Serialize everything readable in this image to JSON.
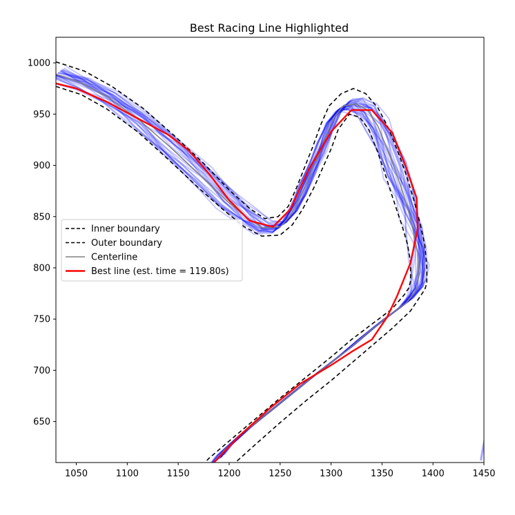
{
  "chart_data": {
    "type": "line",
    "title": "Best Racing Line Highlighted",
    "xlabel": "",
    "ylabel": "",
    "xlim": [
      1030,
      1450
    ],
    "ylim": [
      610,
      1025
    ],
    "xticks": [
      1050,
      1100,
      1150,
      1200,
      1250,
      1300,
      1350,
      1400,
      1450
    ],
    "yticks": [
      650,
      700,
      750,
      800,
      850,
      900,
      950,
      1000
    ],
    "grid": false,
    "legend_position": "center-left",
    "colors": {
      "boundary": "#000000",
      "centerline": "#808080",
      "candidate": "#0000ff",
      "best": "#ff0000"
    },
    "legend": [
      {
        "label": "Inner boundary",
        "style": "dashed",
        "color": "#000000"
      },
      {
        "label": "Outer boundary",
        "style": "dashed",
        "color": "#000000"
      },
      {
        "label": "Centerline",
        "style": "solid",
        "color": "#808080"
      },
      {
        "label": "Best line (est. time = 119.80s)",
        "style": "solid",
        "color": "#ff0000"
      }
    ],
    "series": [
      {
        "name": "Inner boundary",
        "x": [
          1030,
          1055,
          1080,
          1110,
          1140,
          1170,
          1195,
          1215,
          1232,
          1250,
          1262,
          1272,
          1283,
          1292,
          1300,
          1307,
          1318,
          1328,
          1337,
          1345,
          1352,
          1358,
          1364,
          1370,
          1375,
          1378,
          1378,
          1376,
          1372,
          1360,
          1340,
          1320,
          1300,
          1275,
          1250,
          1225,
          1200,
          1180,
          1170
        ],
        "y": [
          977,
          969,
          955,
          933,
          906,
          878,
          856,
          840,
          831,
          832,
          842,
          857,
          878,
          898,
          916,
          935,
          950,
          947,
          935,
          915,
          895,
          876,
          858,
          840,
          823,
          805,
          787,
          780,
          774,
          760,
          745,
          730,
          713,
          693,
          673,
          652,
          631,
          614,
          603
        ]
      },
      {
        "name": "Outer boundary",
        "x": [
          1030,
          1058,
          1085,
          1115,
          1145,
          1175,
          1200,
          1220,
          1235,
          1248,
          1258,
          1266,
          1274,
          1282,
          1290,
          1298,
          1310,
          1322,
          1334,
          1346,
          1357,
          1366,
          1374,
          1381,
          1387,
          1392,
          1394,
          1394,
          1392,
          1388,
          1378,
          1360,
          1340,
          1320,
          1300,
          1275,
          1250,
          1225,
          1205,
          1195
        ],
        "y": [
          1001,
          992,
          977,
          956,
          930,
          902,
          876,
          858,
          848,
          850,
          860,
          878,
          898,
          918,
          940,
          958,
          970,
          975,
          970,
          956,
          935,
          912,
          890,
          867,
          845,
          822,
          800,
          785,
          779,
          773,
          758,
          741,
          724,
          707,
          690,
          670,
          649,
          627,
          609,
          600
        ]
      },
      {
        "name": "Centerline",
        "x": [
          1030,
          1056,
          1082,
          1112,
          1142,
          1172,
          1197,
          1217,
          1233,
          1250,
          1260,
          1269,
          1278,
          1287,
          1295,
          1302,
          1312,
          1324,
          1336,
          1346,
          1355,
          1363,
          1370,
          1376,
          1381,
          1385,
          1386,
          1385,
          1382,
          1374,
          1355,
          1335,
          1315,
          1290,
          1265,
          1240,
          1215,
          1195,
          1185
        ],
        "y": [
          989,
          980,
          966,
          944,
          918,
          890,
          866,
          849,
          839,
          840,
          851,
          867,
          888,
          908,
          928,
          946,
          958,
          960,
          954,
          938,
          916,
          895,
          875,
          855,
          835,
          814,
          795,
          782,
          776,
          766,
          752,
          736,
          719,
          700,
          680,
          660,
          640,
          622,
          610
        ]
      },
      {
        "name": "Best line (est. time = 119.80s)",
        "x": [
          1030,
          1050,
          1080,
          1110,
          1140,
          1160,
          1180,
          1200,
          1220,
          1243,
          1260,
          1278,
          1300,
          1320,
          1340,
          1360,
          1373,
          1384,
          1385,
          1378,
          1365,
          1355,
          1340,
          1320,
          1300,
          1270,
          1240,
          1210,
          1185
        ],
        "y": [
          980,
          975,
          962,
          946,
          930,
          915,
          892,
          866,
          846,
          840,
          857,
          896,
          933,
          954,
          954,
          932,
          900,
          868,
          838,
          805,
          773,
          752,
          730,
          718,
          705,
          687,
          663,
          636,
          610
        ]
      }
    ]
  }
}
